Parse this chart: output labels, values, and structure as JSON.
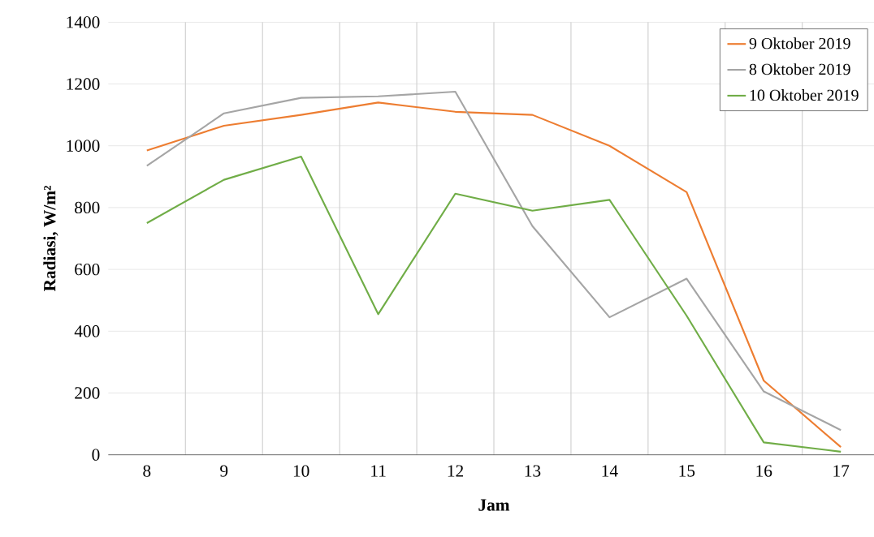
{
  "chart_data": {
    "type": "line",
    "xlabel": "Jam",
    "ylabel": "Radiasi, W/m²",
    "categories": [
      "8",
      "9",
      "10",
      "11",
      "12",
      "13",
      "14",
      "15",
      "16",
      "17"
    ],
    "series": [
      {
        "name": "9 Oktober 2019",
        "color": "#ed7d31",
        "values": [
          985,
          1065,
          1100,
          1140,
          1110,
          1100,
          1000,
          850,
          240,
          25
        ]
      },
      {
        "name": "8 Oktober 2019",
        "color": "#a5a5a5",
        "values": [
          935,
          1105,
          1155,
          1160,
          1175,
          740,
          445,
          570,
          205,
          80
        ]
      },
      {
        "name": "10 Oktober 2019",
        "color": "#70ad47",
        "values": [
          750,
          890,
          965,
          455,
          845,
          790,
          825,
          450,
          40,
          10
        ]
      }
    ],
    "ylim": [
      0,
      1400
    ],
    "yticks": [
      0,
      200,
      400,
      600,
      800,
      1000,
      1200,
      1400
    ],
    "grid": true,
    "legend": "top right",
    "marker": "none",
    "line_style": "solid"
  }
}
